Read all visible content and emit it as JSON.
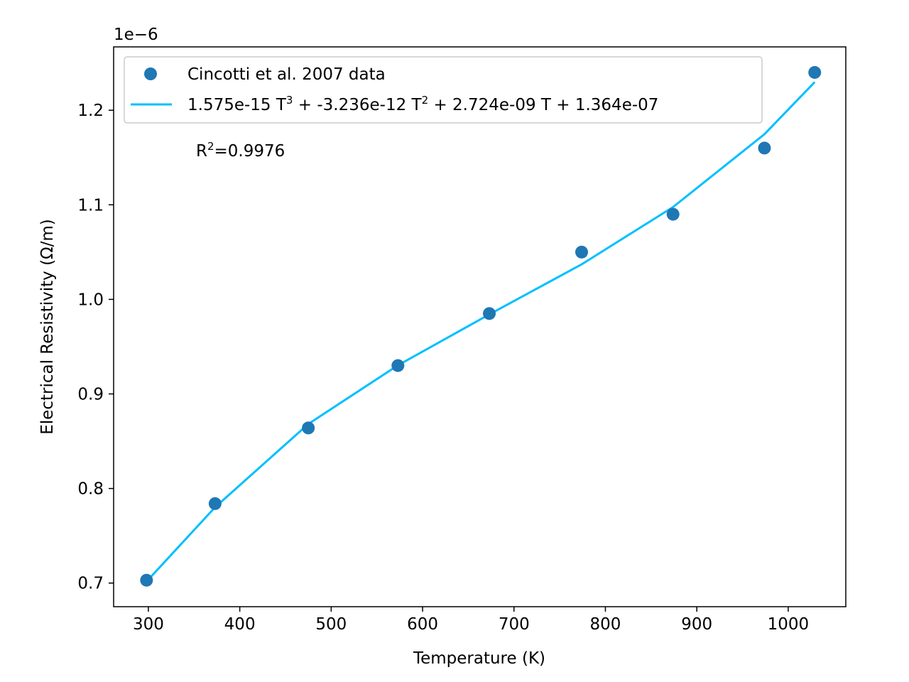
{
  "chart_data": {
    "type": "scatter",
    "xlabel": "Temperature (K)",
    "ylabel": "Electrical Resistivity (Ω/m)",
    "y_offset_label": "1e−6",
    "xlim": [
      262,
      1063
    ],
    "ylim": [
      0.675,
      1.267
    ],
    "x_ticks": [
      300,
      400,
      500,
      600,
      700,
      800,
      900,
      1000
    ],
    "x_tick_labels": [
      "300",
      "400",
      "500",
      "600",
      "700",
      "800",
      "900",
      "1000"
    ],
    "y_ticks": [
      0.7,
      0.8,
      0.9,
      1.0,
      1.1,
      1.2
    ],
    "y_tick_labels": [
      "0.7",
      "0.8",
      "0.9",
      "1.0",
      "1.1",
      "1.2"
    ],
    "grid": false,
    "legend_position": "top-left",
    "series": [
      {
        "name": "Cincotti et al. 2007 data",
        "kind": "scatter",
        "color": "#1f77b4",
        "x": [
          298,
          373,
          475,
          573,
          673,
          774,
          874,
          974,
          1029
        ],
        "y": [
          0.703,
          0.784,
          0.864,
          0.93,
          0.985,
          1.05,
          1.09,
          1.16,
          1.24
        ]
      },
      {
        "name_parts": [
          "1.575e-15 T",
          "3",
          " + -3.236e-12 T",
          "2",
          " + 2.724e-09 T + 1.364e-07"
        ],
        "kind": "line",
        "color": "#00bfff",
        "x": [
          298,
          373,
          475,
          573,
          673,
          774,
          874,
          974,
          1029
        ],
        "y": [
          0.7016,
          0.7802,
          0.8682,
          0.9303,
          0.9841,
          1.037,
          1.0976,
          1.1747,
          1.2297
        ]
      }
    ],
    "annotation": {
      "prefix": "R",
      "sup": "2",
      "suffix": "=0.9976"
    }
  }
}
